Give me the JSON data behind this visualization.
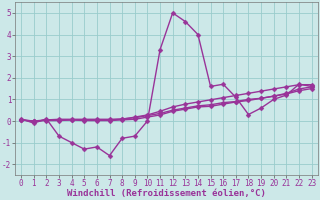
{
  "background_color": "#cce8e8",
  "grid_color": "#99cccc",
  "line_color": "#993399",
  "markersize": 2.5,
  "linewidth": 1.0,
  "xlabel": "Windchill (Refroidissement éolien,°C)",
  "xlabel_fontsize": 6.5,
  "tick_fontsize": 5.5,
  "ylim": [
    -2.5,
    5.5
  ],
  "xlim": [
    -0.5,
    23.5
  ],
  "yticks": [
    -2,
    -1,
    0,
    1,
    2,
    3,
    4,
    5
  ],
  "xticks": [
    0,
    1,
    2,
    3,
    4,
    5,
    6,
    7,
    8,
    9,
    10,
    11,
    12,
    13,
    14,
    15,
    16,
    17,
    18,
    19,
    20,
    21,
    22,
    23
  ],
  "series": [
    [
      0.1,
      -0.1,
      0.1,
      -0.7,
      -1.0,
      -1.3,
      -1.2,
      -1.6,
      -0.8,
      -0.7,
      0.0,
      3.3,
      5.0,
      4.6,
      4.0,
      1.6,
      1.7,
      1.1,
      0.3,
      0.6,
      1.0,
      1.2,
      1.7,
      1.6
    ],
    [
      0.05,
      0.0,
      0.05,
      0.05,
      0.05,
      0.05,
      0.05,
      0.05,
      0.1,
      0.15,
      0.25,
      0.35,
      0.5,
      0.6,
      0.7,
      0.75,
      0.85,
      0.9,
      1.0,
      1.05,
      1.15,
      1.25,
      1.4,
      1.5
    ],
    [
      0.05,
      0.0,
      0.02,
      0.02,
      0.05,
      0.02,
      0.02,
      0.02,
      0.05,
      0.08,
      0.18,
      0.28,
      0.45,
      0.55,
      0.65,
      0.68,
      0.78,
      0.88,
      0.95,
      1.05,
      1.15,
      1.28,
      1.48,
      1.58
    ],
    [
      0.05,
      -0.02,
      0.05,
      0.08,
      0.08,
      0.08,
      0.08,
      0.08,
      0.08,
      0.18,
      0.28,
      0.45,
      0.65,
      0.78,
      0.88,
      0.98,
      1.08,
      1.18,
      1.28,
      1.38,
      1.48,
      1.58,
      1.68,
      1.68
    ]
  ]
}
